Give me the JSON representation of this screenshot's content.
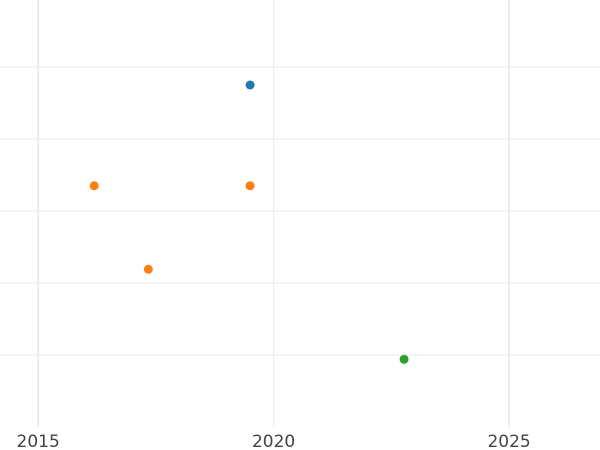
{
  "chart_data": {
    "type": "scatter",
    "title": "",
    "xlabel": "",
    "ylabel": "",
    "xlim": [
      2014.19,
      2026.93
    ],
    "ylim": [
      0,
      5.93
    ],
    "x_ticks": [
      2015,
      2020,
      2025
    ],
    "x_tick_labels": [
      "2015",
      "2020",
      "2025"
    ],
    "y_gridlines": [
      1,
      2,
      3,
      4,
      5
    ],
    "y_tick_labels_shown": false,
    "grid": true,
    "background": "#ffffff",
    "grid_color": "#ebebeb",
    "series": [
      {
        "color": "#1f77b4",
        "points": [
          {
            "x": 2019.5,
            "y": 4.75
          }
        ]
      },
      {
        "color": "#ff7f0e",
        "points": [
          {
            "x": 2016.19,
            "y": 3.35
          },
          {
            "x": 2017.34,
            "y": 2.19
          },
          {
            "x": 2019.5,
            "y": 3.35
          }
        ]
      },
      {
        "color": "#2ca02c",
        "points": [
          {
            "x": 2022.77,
            "y": 0.94
          }
        ]
      }
    ]
  }
}
